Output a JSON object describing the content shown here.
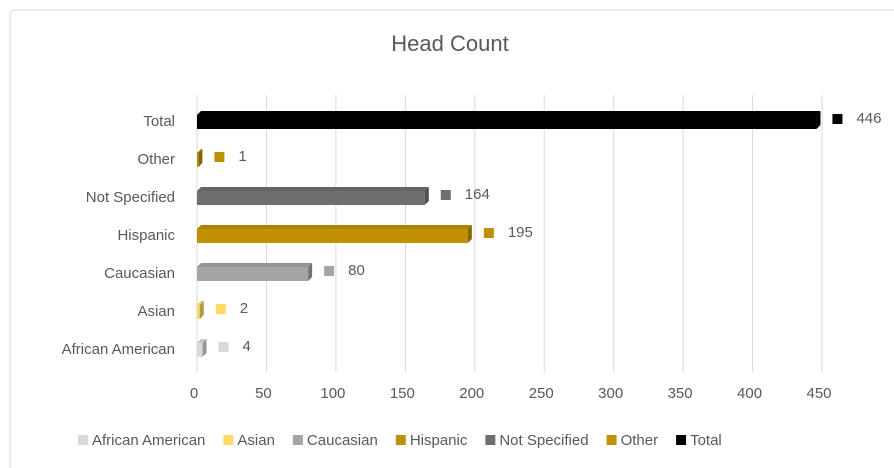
{
  "chart_data": {
    "type": "bar",
    "orientation": "horizontal",
    "title": "Head Count",
    "categories": [
      "African American",
      "Asian",
      "Caucasian",
      "Hispanic",
      "Not Specified",
      "Other",
      "Total"
    ],
    "values": [
      4,
      2,
      80,
      195,
      164,
      1,
      446
    ],
    "colors": [
      "#d9d9d9",
      "#ffd966",
      "#a5a5a5",
      "#bf9000",
      "#6f6f6f",
      "#bf9000",
      "#000000"
    ],
    "xlim": [
      0,
      450
    ],
    "xticks": [
      0,
      50,
      100,
      150,
      200,
      250,
      300,
      350,
      400,
      450
    ],
    "grid": true,
    "legend": "bottom"
  }
}
